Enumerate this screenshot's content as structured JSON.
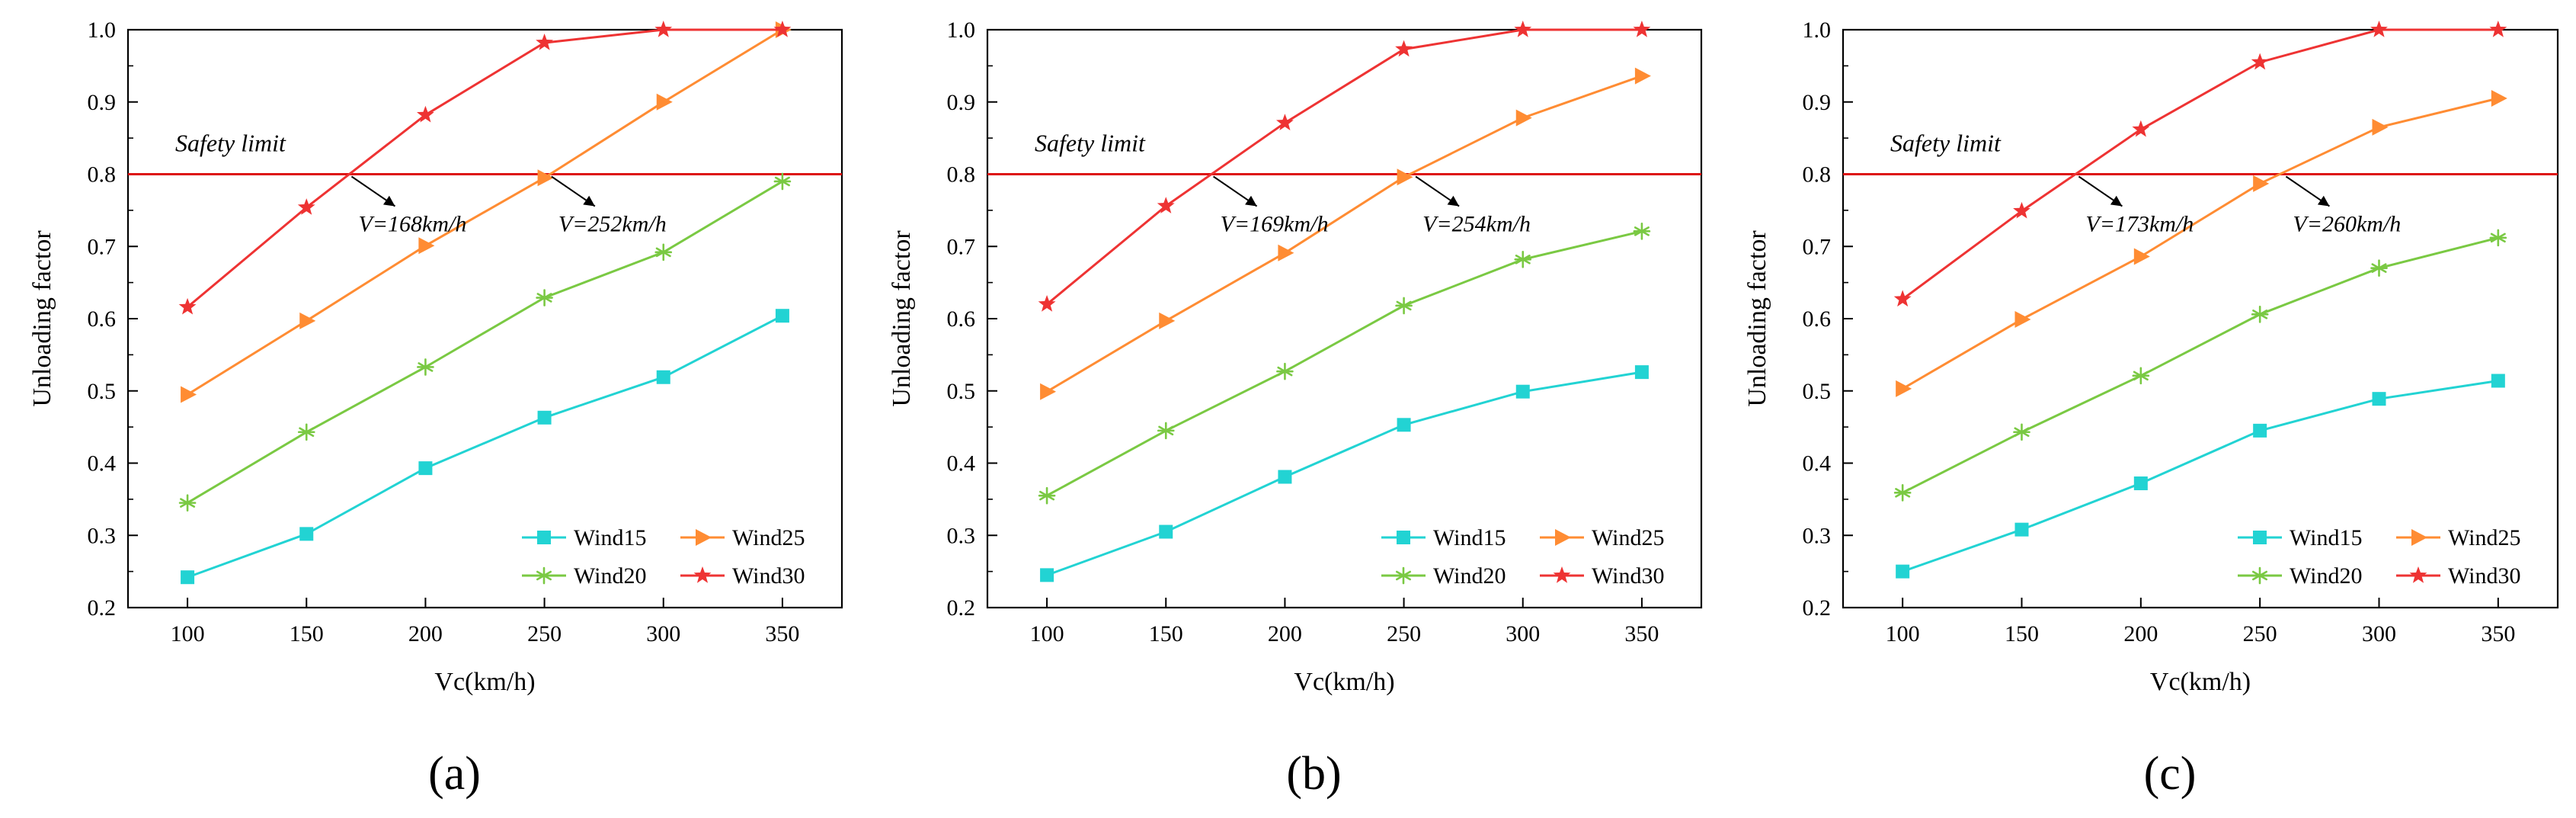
{
  "colors": {
    "Wind15": "#22d3d3",
    "Wind20": "#7ac943",
    "Wind25": "#ff8c33",
    "Wind30": "#ee3333",
    "safety_line": "#dd1111",
    "axis": "#000000"
  },
  "chart_data": [
    {
      "type": "line",
      "panel_label": "(a)",
      "xlabel": "Vc(km/h)",
      "ylabel": "Unloading factor",
      "x": [
        100,
        150,
        200,
        250,
        300,
        350
      ],
      "xlim": [
        75,
        375
      ],
      "ylim": [
        0.2,
        1.0
      ],
      "xticks": [
        100,
        150,
        200,
        250,
        300,
        350
      ],
      "yticks": [
        "0.2",
        "0.3",
        "0.4",
        "0.5",
        "0.6",
        "0.7",
        "0.8",
        "0.9",
        "1.0"
      ],
      "grid": false,
      "legend_position": "bottom-right",
      "series": [
        {
          "name": "Wind15",
          "marker": "square",
          "values": [
            0.242,
            0.302,
            0.393,
            0.463,
            0.519,
            0.604
          ]
        },
        {
          "name": "Wind20",
          "marker": "asterisk",
          "values": [
            0.345,
            0.443,
            0.533,
            0.629,
            0.692,
            0.79
          ]
        },
        {
          "name": "Wind25",
          "marker": "triangle-right",
          "values": [
            0.495,
            0.597,
            0.701,
            0.795,
            0.9,
            1.0
          ]
        },
        {
          "name": "Wind30",
          "marker": "star",
          "values": [
            0.616,
            0.754,
            0.882,
            0.982,
            1.0,
            1.0
          ]
        }
      ],
      "safety_limit": {
        "value": 0.8,
        "label": "Safety limit"
      },
      "annotations": [
        {
          "text": "V=168km/h",
          "x": 168
        },
        {
          "text": "V=252km/h",
          "x": 252
        }
      ]
    },
    {
      "type": "line",
      "panel_label": "(b)",
      "xlabel": "Vc(km/h)",
      "ylabel": "Unloading factor",
      "x": [
        100,
        150,
        200,
        250,
        300,
        350
      ],
      "xlim": [
        75,
        375
      ],
      "ylim": [
        0.2,
        1.0
      ],
      "xticks": [
        100,
        150,
        200,
        250,
        300,
        350
      ],
      "yticks": [
        "0.2",
        "0.3",
        "0.4",
        "0.5",
        "0.6",
        "0.7",
        "0.8",
        "0.9",
        "1.0"
      ],
      "grid": false,
      "legend_position": "bottom-right",
      "series": [
        {
          "name": "Wind15",
          "marker": "square",
          "values": [
            0.245,
            0.305,
            0.381,
            0.453,
            0.499,
            0.526
          ]
        },
        {
          "name": "Wind20",
          "marker": "asterisk",
          "values": [
            0.355,
            0.445,
            0.527,
            0.618,
            0.682,
            0.721
          ]
        },
        {
          "name": "Wind25",
          "marker": "triangle-right",
          "values": [
            0.499,
            0.597,
            0.691,
            0.796,
            0.878,
            0.936
          ]
        },
        {
          "name": "Wind30",
          "marker": "star",
          "values": [
            0.62,
            0.756,
            0.871,
            0.973,
            1.0,
            1.0
          ]
        }
      ],
      "safety_limit": {
        "value": 0.8,
        "label": "Safety limit"
      },
      "annotations": [
        {
          "text": "V=169km/h",
          "x": 169
        },
        {
          "text": "V=254km/h",
          "x": 254
        }
      ]
    },
    {
      "type": "line",
      "panel_label": "(c)",
      "xlabel": "Vc(km/h)",
      "ylabel": "Unloading factor",
      "x": [
        100,
        150,
        200,
        250,
        300,
        350
      ],
      "xlim": [
        75,
        375
      ],
      "ylim": [
        0.2,
        1.0
      ],
      "xticks": [
        100,
        150,
        200,
        250,
        300,
        350
      ],
      "yticks": [
        "0.2",
        "0.3",
        "0.4",
        "0.5",
        "0.6",
        "0.7",
        "0.8",
        "0.9",
        "1.0"
      ],
      "grid": false,
      "legend_position": "bottom-right",
      "series": [
        {
          "name": "Wind15",
          "marker": "square",
          "values": [
            0.25,
            0.308,
            0.372,
            0.445,
            0.489,
            0.514
          ]
        },
        {
          "name": "Wind20",
          "marker": "asterisk",
          "values": [
            0.359,
            0.443,
            0.521,
            0.606,
            0.67,
            0.712
          ]
        },
        {
          "name": "Wind25",
          "marker": "triangle-right",
          "values": [
            0.503,
            0.599,
            0.686,
            0.787,
            0.865,
            0.905
          ]
        },
        {
          "name": "Wind30",
          "marker": "star",
          "values": [
            0.627,
            0.749,
            0.862,
            0.955,
            1.0,
            1.0
          ]
        }
      ],
      "safety_limit": {
        "value": 0.8,
        "label": "Safety limit"
      },
      "annotations": [
        {
          "text": "V=173km/h",
          "x": 173
        },
        {
          "text": "V=260km/h",
          "x": 260
        }
      ]
    }
  ]
}
